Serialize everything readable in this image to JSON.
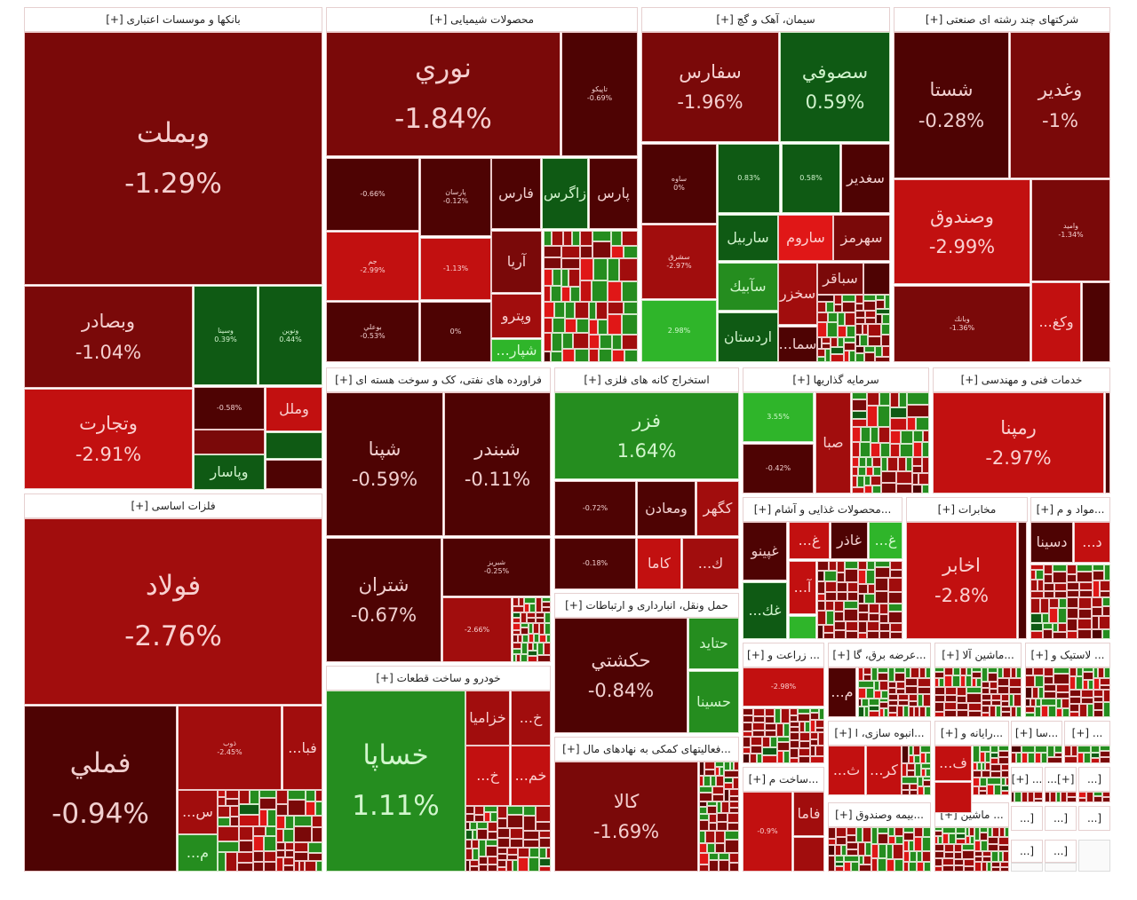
{
  "palette": {
    "darkest_red": "#4e0303",
    "dark_red": "#7a0909",
    "red": "#a10d0d",
    "bright_red": "#c21010",
    "vivid_red": "#e01717",
    "dark_green": "#0f5a14",
    "green": "#258d1f",
    "bright_green": "#2fb52a"
  },
  "sectors": [
    {
      "title": "بانکها و موسسات اعتباری [+]",
      "tiles": [
        {
          "name": "وبملت",
          "pct": "-1.29%"
        },
        {
          "name": "وبصادر",
          "pct": "-1.04%"
        },
        {
          "name": "وسینا",
          "pct": "0.39%"
        },
        {
          "name": "ونوین",
          "pct": "0.44%"
        },
        {
          "name": "وتجارت",
          "pct": "-2.91%"
        },
        {
          "name": "",
          "pct": "-0.58%"
        },
        {
          "name": "وملل",
          "pct": ""
        },
        {
          "name": "وپاسار",
          "pct": ""
        }
      ]
    },
    {
      "title": "فلزات اساسی [+]",
      "tiles": [
        {
          "name": "فولاد",
          "pct": "-2.76%"
        },
        {
          "name": "فملي",
          "pct": "-0.94%"
        },
        {
          "name": "ذوب",
          "pct": "-2.45%"
        },
        {
          "name": "فبا...",
          "pct": ""
        },
        {
          "name": "س...",
          "pct": ""
        },
        {
          "name": "م...",
          "pct": ""
        }
      ]
    },
    {
      "title": "محصولات شیمیایی [+]",
      "tiles": [
        {
          "name": "نوري",
          "pct": "-1.84%"
        },
        {
          "name": "تاپيکو",
          "pct": "-0.69%"
        },
        {
          "name": "",
          "pct": "-0.66%"
        },
        {
          "name": "پارسان",
          "pct": "-0.12%"
        },
        {
          "name": "فارس",
          "pct": ""
        },
        {
          "name": "زاگرس",
          "pct": ""
        },
        {
          "name": "پارس",
          "pct": ""
        },
        {
          "name": "جم",
          "pct": "-2.99%"
        },
        {
          "name": "",
          "pct": "-1.13%"
        },
        {
          "name": "بوعلي",
          "pct": "-0.53%"
        },
        {
          "name": "",
          "pct": "0%"
        },
        {
          "name": "آريا",
          "pct": ""
        },
        {
          "name": "وپترو",
          "pct": ""
        },
        {
          "name": "شپار...",
          "pct": ""
        }
      ]
    },
    {
      "title": "سیمان، آهک و گچ [+]",
      "tiles": [
        {
          "name": "سفارس",
          "pct": "-1.96%"
        },
        {
          "name": "سصوفي",
          "pct": "0.59%"
        },
        {
          "name": "ساوه",
          "pct": "0%"
        },
        {
          "name": "",
          "pct": "0.83%"
        },
        {
          "name": "",
          "pct": "0.58%"
        },
        {
          "name": "سغدير",
          "pct": ""
        },
        {
          "name": "سشرق",
          "pct": "-2.97%"
        },
        {
          "name": "",
          "pct": "2.98%"
        },
        {
          "name": "ساربيل",
          "pct": ""
        },
        {
          "name": "ساروم",
          "pct": ""
        },
        {
          "name": "سهرمز",
          "pct": ""
        },
        {
          "name": "سآبيك",
          "pct": ""
        },
        {
          "name": "اردستان",
          "pct": ""
        },
        {
          "name": "سخزر",
          "pct": ""
        },
        {
          "name": "سباقر",
          "pct": ""
        },
        {
          "name": "سما...",
          "pct": ""
        }
      ]
    },
    {
      "title": "شرکتهای چند رشته ای صنعتی [+]",
      "tiles": [
        {
          "name": "شستا",
          "pct": "-0.28%"
        },
        {
          "name": "وغدير",
          "pct": "-1%"
        },
        {
          "name": "وصندوق",
          "pct": "-2.99%"
        },
        {
          "name": "واميد",
          "pct": "-1.34%"
        },
        {
          "name": "وبانك",
          "pct": "-1.36%"
        },
        {
          "name": "وكغ...",
          "pct": ""
        }
      ]
    },
    {
      "title": "فراورده های نفتی، کک و سوخت هسته ای [+]",
      "tiles": [
        {
          "name": "شپنا",
          "pct": "-0.59%"
        },
        {
          "name": "شبندر",
          "pct": "-0.11%"
        },
        {
          "name": "شتران",
          "pct": "-0.67%"
        },
        {
          "name": "شبريز",
          "pct": "-0.25%"
        },
        {
          "name": "",
          "pct": "-2.66%"
        }
      ]
    },
    {
      "title": "استخراج کانه های فلزی [+]",
      "tiles": [
        {
          "name": "فزر",
          "pct": "1.64%"
        },
        {
          "name": "",
          "pct": "-0.72%"
        },
        {
          "name": "ومعادن",
          "pct": ""
        },
        {
          "name": "کگهر",
          "pct": ""
        },
        {
          "name": "",
          "pct": "-0.18%"
        },
        {
          "name": "کاما",
          "pct": ""
        },
        {
          "name": "ك...",
          "pct": ""
        }
      ]
    },
    {
      "title": "حمل ونقل، انبارداری و ارتباطات [+]",
      "tiles": [
        {
          "name": "حکشتي",
          "pct": "-0.84%"
        },
        {
          "name": "حتايد",
          "pct": ""
        },
        {
          "name": "حسينا",
          "pct": ""
        }
      ]
    },
    {
      "title": "خودرو و ساخت قطعات [+]",
      "tiles": [
        {
          "name": "خساپا",
          "pct": "1.11%"
        },
        {
          "name": "خزاميا",
          "pct": ""
        },
        {
          "name": "خ...",
          "pct": ""
        },
        {
          "name": "خ...",
          "pct": ""
        },
        {
          "name": "خم...",
          "pct": ""
        }
      ]
    },
    {
      "title": "...فعالیتهای کمکی به نهادهای مال [+]",
      "tiles": [
        {
          "name": "کالا",
          "pct": "-1.69%"
        }
      ]
    },
    {
      "title": "سرمایه گذاریها [+]",
      "tiles": [
        {
          "name": "",
          "pct": "3.55%"
        },
        {
          "name": "",
          "pct": "-0.42%"
        },
        {
          "name": "صبا",
          "pct": ""
        }
      ]
    },
    {
      "title": "خدمات فنی و مهندسی [+]",
      "tiles": [
        {
          "name": "رمپنا",
          "pct": "-2.97%"
        }
      ]
    },
    {
      "title": "...محصولات غذایی و آشام [+]",
      "tiles": [
        {
          "name": "غپينو",
          "pct": ""
        },
        {
          "name": "غ...",
          "pct": ""
        },
        {
          "name": "غاذر",
          "pct": ""
        },
        {
          "name": "غ...",
          "pct": ""
        },
        {
          "name": "آ...",
          "pct": ""
        },
        {
          "name": "غك...",
          "pct": ""
        }
      ]
    },
    {
      "title": "مخابرات [+]",
      "tiles": [
        {
          "name": "اخابر",
          "pct": "-2.8%"
        }
      ]
    },
    {
      "title": "...مواد و م [+]",
      "tiles": [
        {
          "name": "دسينا",
          "pct": ""
        },
        {
          "name": "د...",
          "pct": ""
        }
      ]
    },
    {
      "title": "... زراعت و [+]",
      "tiles": [
        {
          "name": "",
          "pct": "-2.98%"
        }
      ]
    },
    {
      "title": "...عرضه برق، گا [+]",
      "tiles": [
        {
          "name": "م...",
          "pct": ""
        }
      ]
    },
    {
      "title": "...ماشین آلا [+]",
      "tiles": []
    },
    {
      "title": "... لاستیک و [+]",
      "tiles": []
    },
    {
      "title": "...ساخت م [+]",
      "tiles": [
        {
          "name": "",
          "pct": "-0.9%"
        },
        {
          "name": "فاما",
          "pct": ""
        }
      ]
    },
    {
      "title": "...انبوه سازی، ا [+]",
      "tiles": [
        {
          "name": "ث...",
          "pct": ""
        },
        {
          "name": "کر...",
          "pct": ""
        }
      ]
    },
    {
      "title": "...رایانه و [+]",
      "tiles": [
        {
          "name": "ف...",
          "pct": ""
        }
      ]
    },
    {
      "title": "...سا [+]",
      "tiles": []
    },
    {
      "title": "... [+]",
      "tiles": []
    },
    {
      "title": "...بیمه وصندوق [+]",
      "tiles": []
    },
    {
      "title": "... ماشین [+]",
      "tiles": []
    },
    {
      "title": "... [+]",
      "tiles": []
    },
    {
      "title": "[+]...",
      "tiles": []
    },
    {
      "title": "[...",
      "tiles": []
    },
    {
      "title": "[...",
      "tiles": []
    },
    {
      "title": "[...",
      "tiles": []
    },
    {
      "title": "[...",
      "tiles": []
    },
    {
      "title": "[...",
      "tiles": []
    },
    {
      "title": "[...",
      "tiles": []
    }
  ]
}
